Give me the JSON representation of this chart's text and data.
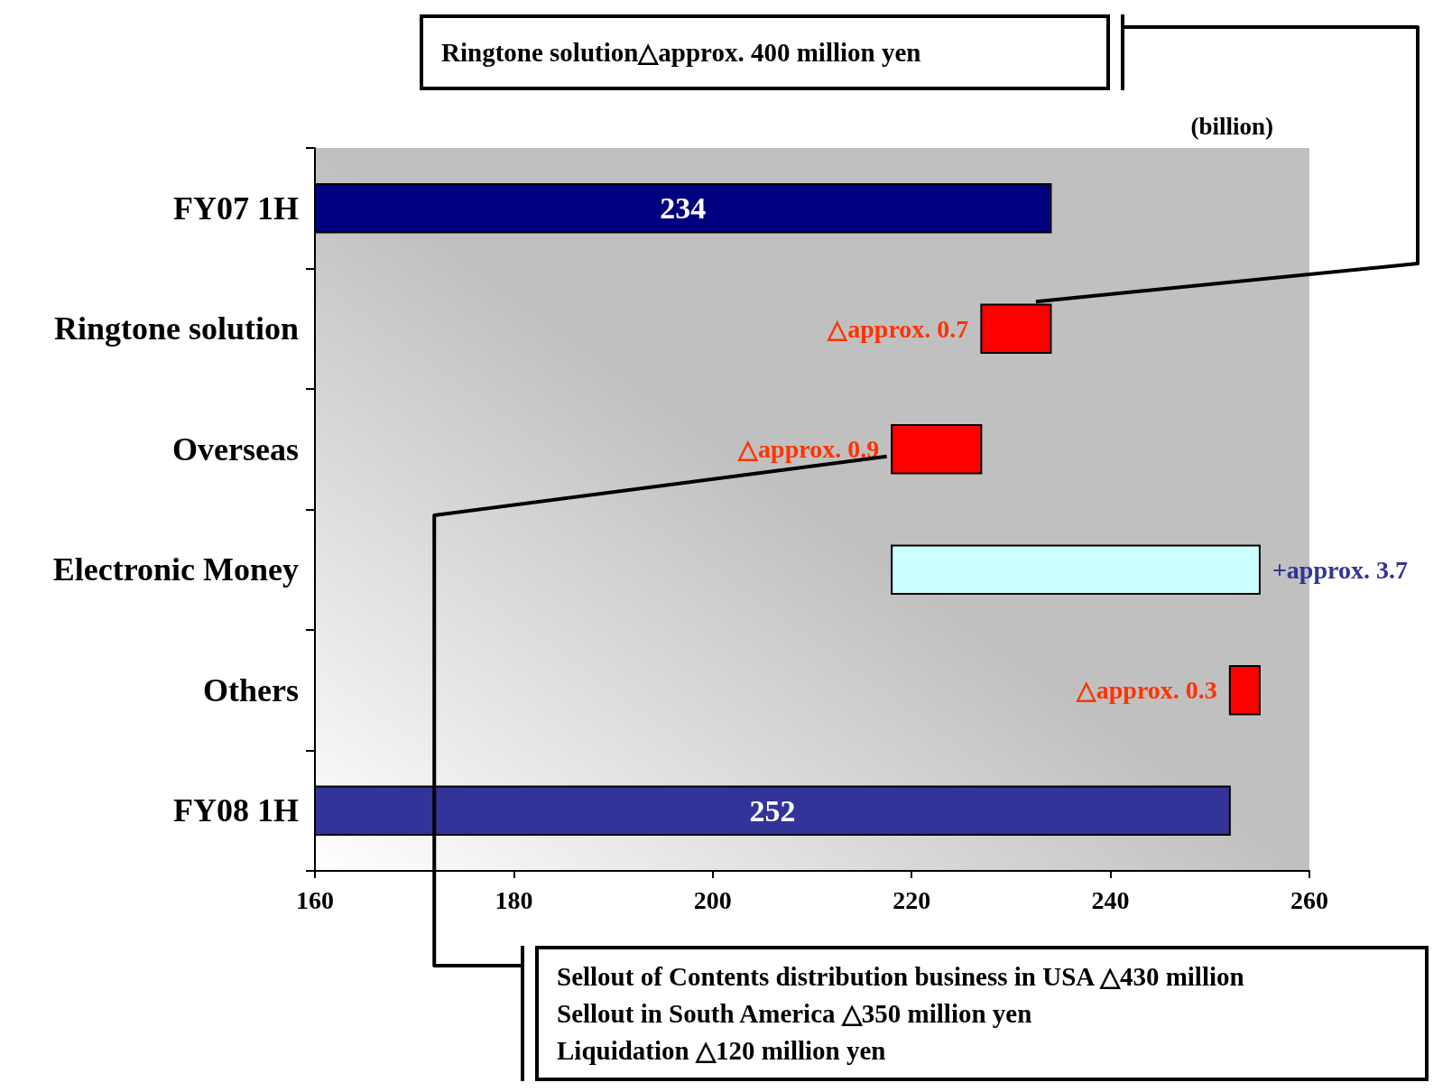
{
  "chart_data": {
    "type": "bar",
    "orientation": "horizontal",
    "categories": [
      "FY07 1H",
      "Ringtone solution",
      "Overseas",
      "Electronic Money",
      "Others",
      "FY08 1H"
    ],
    "values": [
      234,
      -7,
      -9,
      37,
      -3,
      252
    ],
    "base": [
      null,
      234,
      227,
      218,
      255,
      null
    ],
    "colors": [
      "#000080",
      "#ff0000",
      "#ff0000",
      "#ccffff",
      "#ff0000",
      "#333399"
    ],
    "value_labels": [
      "234",
      null,
      null,
      null,
      null,
      "252"
    ],
    "xlim": [
      160,
      260
    ],
    "xticks": [
      160,
      180,
      200,
      220,
      240,
      260
    ],
    "annotations": [
      "(billion)",
      "Ringtone solution△approx. 400 million yen",
      "Sellout of Contents distribution business in USA △430 million\nSellout in South America △350 million yen\nLiquidation △120 million yen",
      {
        "text": "△approx. 0.7",
        "x": 227,
        "y": "Ringtone solution"
      },
      {
        "text": "△approx. 0.9",
        "x": 218,
        "y": "Overseas"
      },
      {
        "text": "+approx. 3.7",
        "x": 255,
        "y": "Electronic Money"
      },
      {
        "text": "△approx. 0.3",
        "x": 252,
        "y": "Others"
      }
    ]
  }
}
